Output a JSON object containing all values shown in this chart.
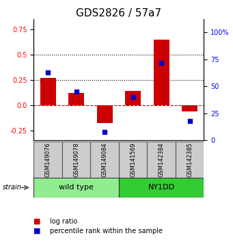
{
  "title": "GDS2826 / 57a7",
  "categories": [
    "GSM149076",
    "GSM149078",
    "GSM149084",
    "GSM141569",
    "GSM142384",
    "GSM142385"
  ],
  "log_ratio": [
    0.27,
    0.12,
    -0.18,
    0.14,
    0.65,
    -0.06
  ],
  "percentile_rank": [
    63,
    45,
    8,
    40,
    72,
    18
  ],
  "groups": [
    {
      "label": "wild type",
      "indices": [
        0,
        1,
        2
      ],
      "color": "#90ee90"
    },
    {
      "label": "NY1DD",
      "indices": [
        3,
        4,
        5
      ],
      "color": "#33cc33"
    }
  ],
  "bar_color": "#cc0000",
  "dot_color": "#0000cc",
  "ylim_left": [
    -0.35,
    0.85
  ],
  "ylim_right": [
    0,
    112
  ],
  "yticks_left": [
    -0.25,
    0.0,
    0.25,
    0.5,
    0.75
  ],
  "yticks_right": [
    0,
    25,
    50,
    75,
    100
  ],
  "hlines": [
    0.25,
    0.5
  ],
  "hline_zero_style": "-.",
  "hline_zero_color": "#cc0000",
  "background_color": "#ffffff",
  "title_fontsize": 11,
  "tick_fontsize": 7,
  "strain_label": "strain",
  "group_label_fontsize": 8,
  "sample_label_fontsize": 6,
  "legend_fontsize": 7
}
